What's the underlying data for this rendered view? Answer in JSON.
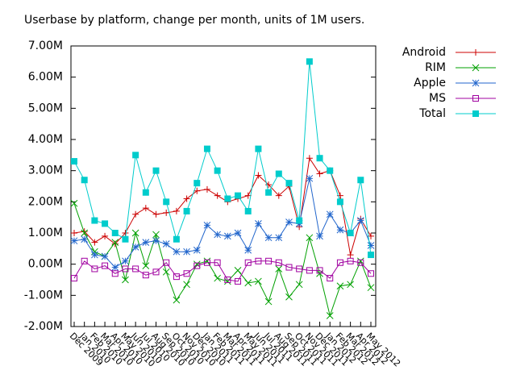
{
  "chart_data": {
    "type": "line",
    "title": "Userbase by platform, change per month, units of 1M users.",
    "categories": [
      "Dec 2009",
      "Jan 2010",
      "Feb 2010",
      "Mar 2010",
      "Apr 2010",
      "May 2010",
      "Jun 2010",
      "Jul 2010",
      "Aug 2010",
      "Sep 2010",
      "Oct 2010",
      "Nov 2010",
      "Dec 2010",
      "Jan 2011",
      "Feb 2011",
      "Mar 2011",
      "Apr 2011",
      "May 2011",
      "Jun 2011",
      "Jul 2011",
      "Aug 2011",
      "Sep 2011",
      "Oct 2011",
      "Nov 2011",
      "Dec 2011",
      "Jan 2012",
      "Feb 2012",
      "Mar 2012",
      "Apr 2012",
      "May 2012"
    ],
    "series": [
      {
        "name": "Android",
        "color": "#cc0000",
        "marker": "plus",
        "values": [
          1.0,
          1.05,
          0.7,
          0.9,
          0.65,
          1.0,
          1.6,
          1.8,
          1.6,
          1.65,
          1.7,
          2.1,
          2.35,
          2.4,
          2.2,
          2.0,
          2.1,
          2.2,
          2.85,
          2.55,
          2.2,
          2.5,
          1.2,
          3.4,
          2.9,
          3.0,
          2.2,
          0.3,
          1.45,
          0.9
        ]
      },
      {
        "name": "RIM",
        "color": "#00a000",
        "marker": "cross",
        "values": [
          1.95,
          1.0,
          0.4,
          0.25,
          0.7,
          -0.5,
          1.0,
          -0.05,
          0.95,
          -0.25,
          -1.15,
          -0.65,
          0.0,
          0.1,
          -0.45,
          -0.55,
          -0.2,
          -0.6,
          -0.55,
          -1.2,
          -0.15,
          -1.05,
          -0.65,
          0.85,
          -0.3,
          -1.65,
          -0.7,
          -0.65,
          0.1,
          -0.75
        ]
      },
      {
        "name": "Apple",
        "color": "#2266cc",
        "marker": "star",
        "values": [
          0.75,
          0.8,
          0.3,
          0.25,
          -0.1,
          0.1,
          0.55,
          0.7,
          0.75,
          0.65,
          0.4,
          0.4,
          0.45,
          1.25,
          0.95,
          0.9,
          1.0,
          0.45,
          1.3,
          0.85,
          0.85,
          1.35,
          1.3,
          2.75,
          0.9,
          1.6,
          1.1,
          1.0,
          1.4,
          0.6
        ]
      },
      {
        "name": "MS",
        "color": "#a000a0",
        "marker": "square",
        "values": [
          -0.45,
          0.1,
          -0.15,
          -0.05,
          -0.3,
          -0.15,
          -0.15,
          -0.35,
          -0.25,
          0.05,
          -0.4,
          -0.3,
          -0.05,
          0.05,
          0.05,
          -0.5,
          -0.55,
          0.05,
          0.1,
          0.1,
          0.05,
          -0.1,
          -0.15,
          -0.2,
          -0.2,
          -0.45,
          0.05,
          0.1,
          0.05,
          -0.3
        ]
      },
      {
        "name": "Total",
        "color": "#00cccc",
        "marker": "filled-square",
        "values": [
          3.3,
          2.7,
          1.4,
          1.3,
          1.0,
          0.8,
          3.5,
          2.3,
          3.0,
          2.0,
          0.8,
          1.7,
          2.6,
          3.7,
          3.0,
          2.1,
          2.2,
          1.7,
          3.7,
          2.3,
          2.9,
          2.6,
          1.4,
          6.5,
          3.4,
          3.0,
          2.0,
          1.0,
          2.7,
          0.3
        ]
      }
    ],
    "ylim": [
      -2,
      7
    ],
    "yticks": [
      {
        "value": -2,
        "label": "-2.00M"
      },
      {
        "value": -1,
        "label": "-1.00M"
      },
      {
        "value": 0,
        "label": "0.00M"
      },
      {
        "value": 1,
        "label": "1.00M"
      },
      {
        "value": 2,
        "label": "2.00M"
      },
      {
        "value": 3,
        "label": "3.00M"
      },
      {
        "value": 4,
        "label": "4.00M"
      },
      {
        "value": 5,
        "label": "5.00M"
      },
      {
        "value": 6,
        "label": "6.00M"
      },
      {
        "value": 7,
        "label": "7.00M"
      }
    ],
    "legend": "outside-right"
  }
}
